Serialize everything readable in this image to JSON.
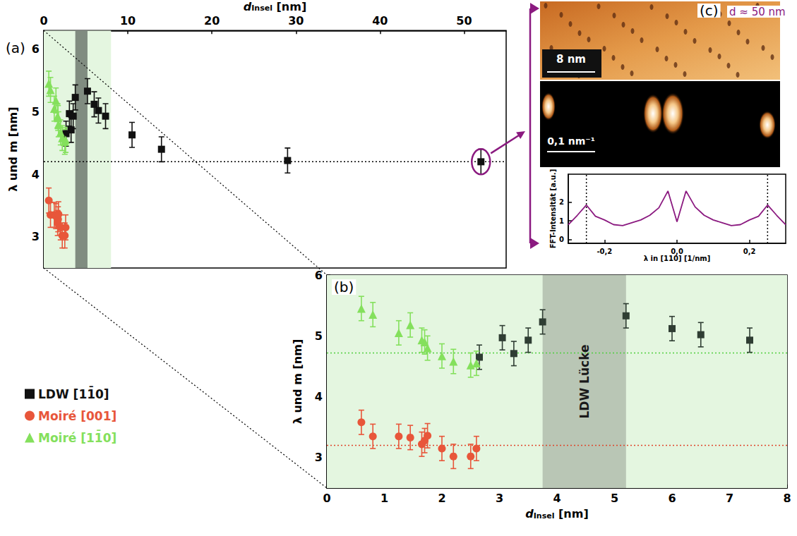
{
  "chart_data": [
    {
      "panel": "(a)",
      "type": "scatter",
      "x_label": {
        "symbol": "d",
        "subscript": "Insel",
        "unit": "[nm]"
      },
      "y_label": "λ und m [nm]",
      "xlim": [
        0,
        55
      ],
      "xticks": [
        0,
        10,
        20,
        30,
        40,
        50
      ],
      "ylim": [
        2.5,
        6.3
      ],
      "yticks": [
        3,
        4,
        5,
        6
      ],
      "grid": false,
      "legend": "bottom-left",
      "regions": [
        {
          "x": [
            0,
            8
          ],
          "color": "#e4f6e0"
        },
        {
          "x": [
            3.75,
            5.2
          ],
          "color": "#808c80"
        }
      ],
      "hlines": [
        {
          "y": 4.2,
          "color": "#000000",
          "line_style": "dotted"
        }
      ],
      "series": [
        {
          "name": "LDW [11̄0]",
          "color": "#111111",
          "marker": "square",
          "x": [
            2.65,
            3.05,
            3.25,
            3.5,
            3.75,
            5.2,
            6.0,
            6.5,
            7.35,
            10.5,
            14,
            29,
            52
          ],
          "values": [
            4.65,
            4.97,
            4.71,
            4.93,
            5.23,
            5.33,
            5.12,
            5.02,
            4.93,
            4.63,
            4.4,
            4.22,
            4.2
          ],
          "errors": [
            0.2,
            0.2,
            0.2,
            0.2,
            0.2,
            0.2,
            0.2,
            0.2,
            0.2,
            0.2,
            0.2,
            0.2,
            0.2
          ]
        },
        {
          "name": "Moiré [001]",
          "color": "#e8563a",
          "marker": "circle",
          "x": [
            0.6,
            0.8,
            1.25,
            1.45,
            1.65,
            1.7,
            1.75,
            2.0,
            2.2,
            2.5,
            2.6
          ],
          "values": [
            3.58,
            3.35,
            3.35,
            3.33,
            3.22,
            3.28,
            3.36,
            3.15,
            3.02,
            3.02,
            3.15
          ],
          "errors": [
            0.2,
            0.2,
            0.2,
            0.2,
            0.2,
            0.2,
            0.2,
            0.2,
            0.2,
            0.2,
            0.2
          ]
        },
        {
          "name": "Moiré [11̄0]",
          "color": "#84e05c",
          "marker": "triangle",
          "x": [
            0.6,
            0.8,
            1.25,
            1.45,
            1.65,
            1.7,
            1.75,
            2.0,
            2.2,
            2.5,
            2.6
          ],
          "values": [
            5.45,
            5.35,
            5.05,
            5.18,
            4.93,
            4.9,
            4.8,
            4.67,
            4.58,
            4.52,
            4.55
          ],
          "errors": [
            0.2,
            0.2,
            0.2,
            0.2,
            0.2,
            0.2,
            0.2,
            0.2,
            0.2,
            0.2,
            0.2
          ]
        }
      ]
    },
    {
      "panel": "(b)",
      "type": "scatter",
      "x_label": {
        "symbol": "d",
        "subscript": "Insel",
        "unit": "[nm]"
      },
      "y_label": "λ und m [nm]",
      "xlim": [
        0,
        8
      ],
      "xticks": [
        0,
        1,
        2,
        3,
        4,
        5,
        6,
        7,
        8
      ],
      "ylim": [
        2.5,
        6
      ],
      "yticks": [
        3,
        4,
        5,
        6
      ],
      "grid": false,
      "regions": [
        {
          "x": [
            0,
            8
          ],
          "color": "#e4f6e0"
        },
        {
          "x": [
            3.75,
            5.2
          ],
          "color": "#b9c6b5",
          "label": "LDW Lücke"
        }
      ],
      "hlines": [
        {
          "y": 4.72,
          "color": "#4fcf3f",
          "line_style": "dotted"
        },
        {
          "y": 3.2,
          "color": "#e0452a",
          "line_style": "dotted"
        }
      ],
      "series": [
        {
          "name": "LDW [11̄0]",
          "color": "#2f3d33",
          "marker": "square",
          "x": [
            2.65,
            3.05,
            3.25,
            3.5,
            3.75,
            5.2,
            6.0,
            6.5,
            7.35
          ],
          "values": [
            4.65,
            4.97,
            4.71,
            4.93,
            5.23,
            5.33,
            5.12,
            5.02,
            4.93
          ],
          "errors": [
            0.2,
            0.2,
            0.2,
            0.2,
            0.2,
            0.2,
            0.2,
            0.2,
            0.2
          ]
        },
        {
          "name": "Moiré [001]",
          "color": "#e8563a",
          "marker": "circle",
          "x": [
            0.6,
            0.8,
            1.25,
            1.45,
            1.65,
            1.7,
            1.75,
            2.0,
            2.2,
            2.5,
            2.6
          ],
          "values": [
            3.58,
            3.35,
            3.35,
            3.33,
            3.22,
            3.28,
            3.36,
            3.15,
            3.02,
            3.02,
            3.15
          ],
          "errors": [
            0.2,
            0.2,
            0.2,
            0.2,
            0.2,
            0.2,
            0.2,
            0.2,
            0.2,
            0.2,
            0.2
          ]
        },
        {
          "name": "Moiré [11̄0]",
          "color": "#84e05c",
          "marker": "triangle",
          "x": [
            0.6,
            0.8,
            1.25,
            1.45,
            1.65,
            1.7,
            1.75,
            2.0,
            2.2,
            2.5,
            2.6
          ],
          "values": [
            5.45,
            5.35,
            5.05,
            5.18,
            4.93,
            4.9,
            4.8,
            4.67,
            4.58,
            4.52,
            4.55
          ],
          "errors": [
            0.2,
            0.2,
            0.2,
            0.2,
            0.2,
            0.2,
            0.2,
            0.2,
            0.2,
            0.2,
            0.2
          ]
        }
      ]
    },
    {
      "panel": "(c)",
      "type": "line",
      "x_label": "λ in [110] [1/nm]",
      "y_label": "FFT-Intensität [a.u.]",
      "xlim": [
        -0.3,
        0.3
      ],
      "xticks": [
        {
          "value": -0.2,
          "label": "-0,2"
        },
        {
          "value": 0,
          "label": "0,0"
        },
        {
          "value": 0.2,
          "label": "0,2"
        }
      ],
      "ylim": [
        -0.2,
        3.5
      ],
      "yticks": [
        0,
        1,
        2
      ],
      "grid": false,
      "vlines": [
        {
          "x": -0.25,
          "color": "#000000",
          "line_style": "dotted"
        },
        {
          "x": 0.25,
          "color": "#000000",
          "line_style": "dotted"
        }
      ],
      "x": [
        -0.3,
        -0.275,
        -0.25,
        -0.225,
        -0.2,
        -0.175,
        -0.15,
        -0.125,
        -0.1,
        -0.075,
        -0.05,
        -0.025,
        0,
        0.025,
        0.05,
        0.075,
        0.1,
        0.125,
        0.15,
        0.175,
        0.2,
        0.225,
        0.25,
        0.275,
        0.3
      ],
      "series": [
        {
          "color": "#8b1a80",
          "line_style": "solid",
          "values": [
            0.8,
            1.3,
            1.85,
            1.25,
            1.05,
            0.8,
            0.75,
            0.9,
            1.05,
            1.3,
            1.7,
            2.6,
            0.95,
            2.6,
            1.75,
            1.3,
            1.05,
            0.9,
            0.75,
            0.8,
            1.05,
            1.25,
            1.85,
            1.3,
            0.8
          ]
        }
      ],
      "images": {
        "stm_label": "d ≈ 50 nm",
        "stm_scale_bar": "8 nm",
        "fft_scale_bar": "0,1 nm⁻¹"
      }
    }
  ]
}
